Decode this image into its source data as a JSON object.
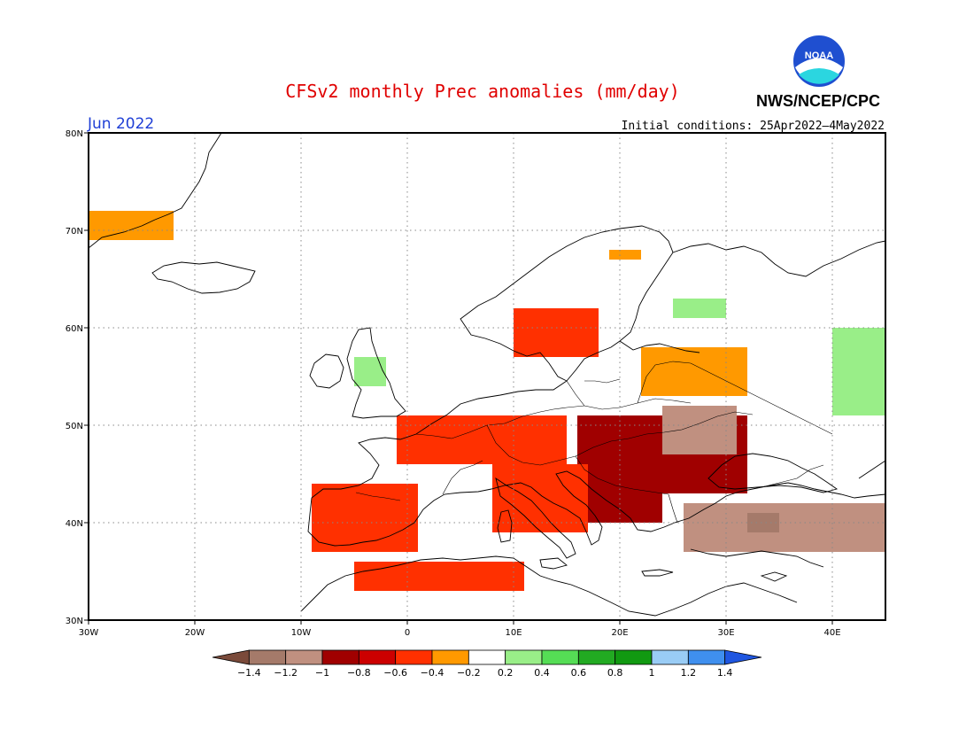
{
  "title": "CFSv2 monthly Prec anomalies (mm/day)",
  "month_label": "Jun 2022",
  "agency": "NWS/NCEP/CPC",
  "logo_text": "NOAA",
  "init_conditions": "Initial conditions: 25Apr2022–4May2022",
  "colors": {
    "title": "#e00000",
    "month": "#1f3fd6",
    "text": "#000000"
  },
  "axes": {
    "x_ticks": [
      "30W",
      "20W",
      "10W",
      "0",
      "10E",
      "20E",
      "30E",
      "40E"
    ],
    "y_ticks": [
      "80N",
      "70N",
      "60N",
      "50N",
      "40N",
      "30N"
    ],
    "lon_range": [
      -30,
      45
    ],
    "lat_range": [
      30,
      80
    ],
    "grid": "dotted"
  },
  "colorbar": {
    "labels": [
      "−1.4",
      "−1.2",
      "−1",
      "−0.8",
      "−0.6",
      "−0.4",
      "−0.2",
      "0.2",
      "0.4",
      "0.6",
      "0.8",
      "1",
      "1.2",
      "1.4"
    ],
    "bins": [
      {
        "color": "#7a4a3a"
      },
      {
        "color": "#a57a6a"
      },
      {
        "color": "#c09080"
      },
      {
        "color": "#a00000"
      },
      {
        "color": "#cc0000"
      },
      {
        "color": "#ff3000"
      },
      {
        "color": "#ff9900"
      },
      {
        "color": "#ffffff"
      },
      {
        "color": "#99ee88"
      },
      {
        "color": "#55dd55"
      },
      {
        "color": "#22aa22"
      },
      {
        "color": "#119911"
      },
      {
        "color": "#99ccf5"
      },
      {
        "color": "#3f8fee"
      },
      {
        "color": "#1f56e0"
      }
    ]
  },
  "anomaly_areas": [
    {
      "region": "Greenland",
      "lon": [
        -30,
        -22
      ],
      "lat": [
        69,
        72
      ],
      "value": -0.3
    },
    {
      "region": "Northern Scandinavia",
      "lon": [
        19,
        22
      ],
      "lat": [
        67,
        68
      ],
      "value": -0.3
    },
    {
      "region": "Southern Norway / Sweden",
      "lon": [
        10,
        18
      ],
      "lat": [
        57,
        62
      ],
      "value": -0.4
    },
    {
      "region": "North Russia",
      "lon": [
        25,
        30
      ],
      "lat": [
        61,
        63
      ],
      "value": 0.3
    },
    {
      "region": "Western Russia",
      "lon": [
        40,
        45
      ],
      "lat": [
        51,
        60
      ],
      "value": 0.3
    },
    {
      "region": "Baltic / Belarus",
      "lon": [
        22,
        32
      ],
      "lat": [
        53,
        58
      ],
      "value": -0.3
    },
    {
      "region": "British Isles",
      "lon": [
        -5,
        -2
      ],
      "lat": [
        54,
        57
      ],
      "value": 0.3
    },
    {
      "region": "France / Germany",
      "lon": [
        -1,
        15
      ],
      "lat": [
        46,
        51
      ],
      "value": -0.4
    },
    {
      "region": "Central Europe / Carpathians",
      "lon": [
        16,
        32
      ],
      "lat": [
        43,
        51
      ],
      "value": -0.8
    },
    {
      "region": "Ukraine",
      "lon": [
        24,
        31
      ],
      "lat": [
        47,
        52
      ],
      "value": -1.0
    },
    {
      "region": "Balkans",
      "lon": [
        14,
        24
      ],
      "lat": [
        40,
        46
      ],
      "value": -0.8
    },
    {
      "region": "Iberia",
      "lon": [
        -9,
        1
      ],
      "lat": [
        37,
        44
      ],
      "value": -0.4
    },
    {
      "region": "Italy",
      "lon": [
        8,
        17
      ],
      "lat": [
        39,
        46
      ],
      "value": -0.4
    },
    {
      "region": "Turkey",
      "lon": [
        26,
        45
      ],
      "lat": [
        37,
        42
      ],
      "value": -1.0
    },
    {
      "region": "Central Anatolia",
      "lon": [
        32,
        35
      ],
      "lat": [
        39,
        41
      ],
      "value": -1.2
    },
    {
      "region": "North Africa",
      "lon": [
        -5,
        11
      ],
      "lat": [
        33,
        36
      ],
      "value": -0.4
    }
  ]
}
